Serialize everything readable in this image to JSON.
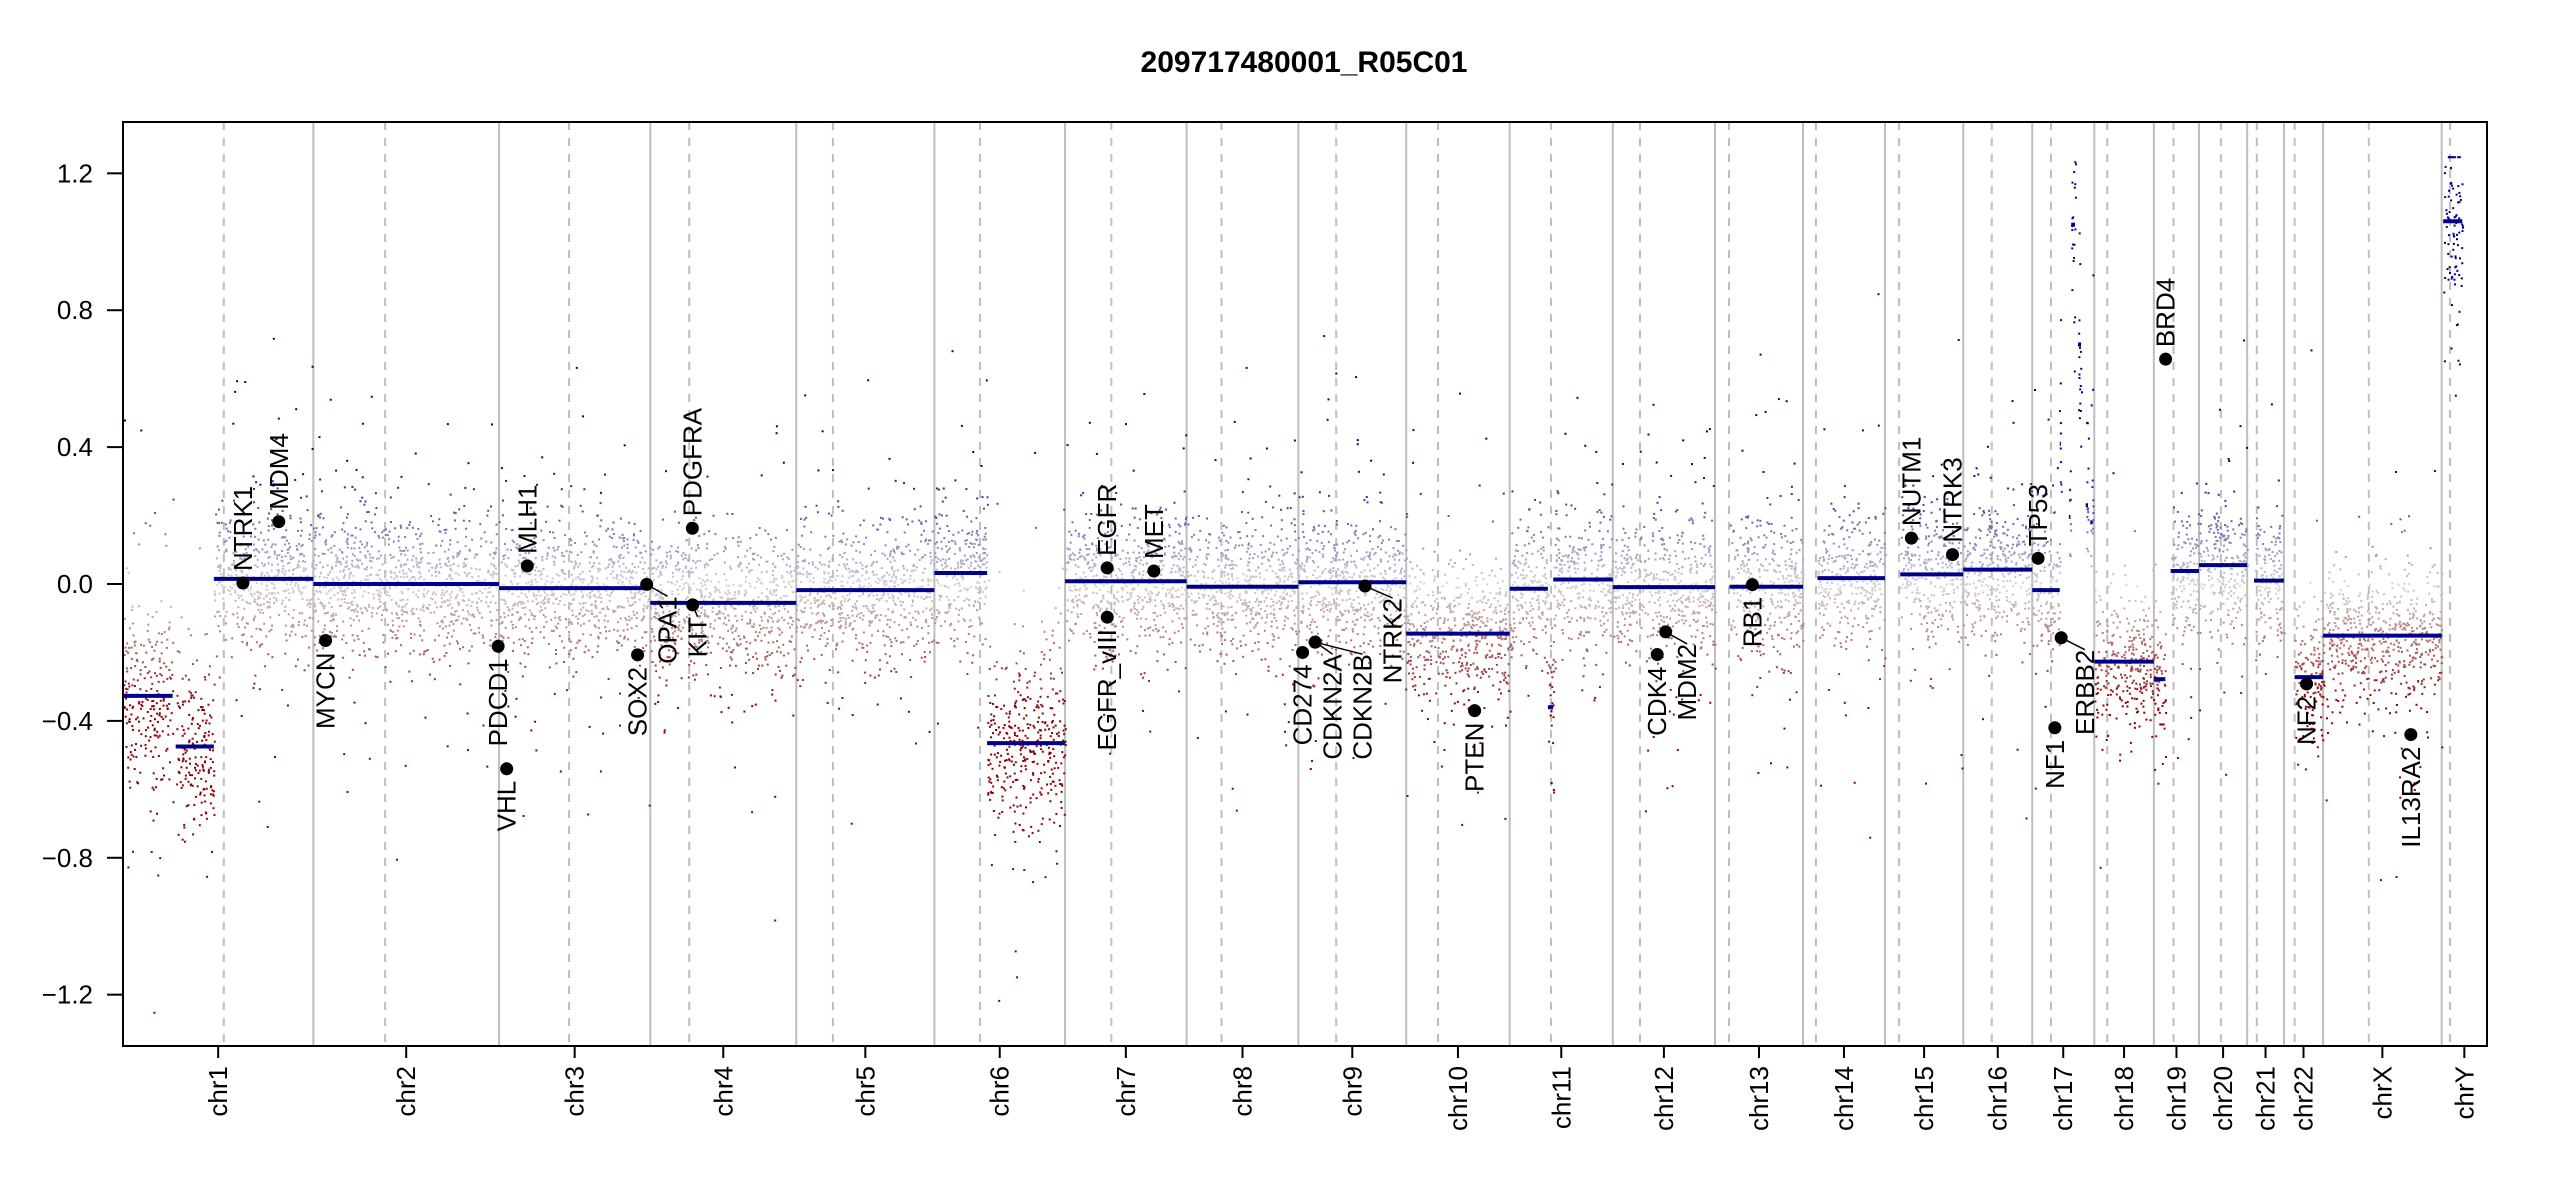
{
  "chart_data": {
    "type": "scatter",
    "title": "209717480001_R05C01",
    "xlabel": "",
    "ylabel": "",
    "ylim": [
      -1.35,
      1.35
    ],
    "grid": false,
    "legend": "none",
    "yticks": [
      -1.2,
      -0.8,
      -0.4,
      0.0,
      0.4,
      0.8,
      1.2
    ],
    "ytick_labels": [
      "−1.2",
      "−0.8",
      "−0.4",
      "0.0",
      "0.4",
      "0.8",
      "1.2"
    ],
    "colors": {
      "loss": "#8B0000",
      "neutral": "#D3D3D3",
      "gain": "#00008B",
      "segment": "#00008B",
      "chromosome_border": "#BEBEBE",
      "centromere": "#BEBEBE",
      "gene_marker": "#000000"
    },
    "chromosomes": [
      {
        "name": "chr1",
        "length": 249.25,
        "centromere": 132,
        "segments": [
          [
            0,
            65,
            -0.327
          ],
          [
            69,
            119,
            -0.475
          ],
          [
            119,
            249.25,
            0.015
          ]
        ]
      },
      {
        "name": "chr2",
        "length": 243.2,
        "centromere": 94,
        "segments": [
          [
            0,
            243.2,
            0.0
          ]
        ]
      },
      {
        "name": "chr3",
        "length": 198.02,
        "centromere": 91.7,
        "segments": [
          [
            0,
            198.02,
            -0.012
          ]
        ]
      },
      {
        "name": "chr4",
        "length": 191.15,
        "centromere": 51,
        "segments": [
          [
            0,
            191.15,
            -0.055
          ]
        ]
      },
      {
        "name": "chr5",
        "length": 180.92,
        "centromere": 48,
        "segments": [
          [
            0,
            180.92,
            -0.018
          ]
        ]
      },
      {
        "name": "chr6",
        "length": 171.12,
        "centromere": 59.7,
        "segments": [
          [
            0,
            69,
            0.032
          ],
          [
            69,
            171.12,
            -0.465
          ]
        ]
      },
      {
        "name": "chr7",
        "length": 159.14,
        "centromere": 60.6,
        "segments": [
          [
            0,
            159.14,
            0.008
          ]
        ]
      },
      {
        "name": "chr8",
        "length": 146.36,
        "centromere": 45.6,
        "segments": [
          [
            0,
            146.36,
            -0.008
          ]
        ]
      },
      {
        "name": "chr9",
        "length": 141.21,
        "centromere": 49.5,
        "segments": [
          [
            0,
            141.21,
            0.005
          ]
        ]
      },
      {
        "name": "chr10",
        "length": 135.53,
        "centromere": 41.6,
        "segments": [
          [
            0,
            135.53,
            -0.145
          ]
        ]
      },
      {
        "name": "chr11",
        "length": 135.01,
        "centromere": 54,
        "segments": [
          [
            0,
            50,
            -0.014
          ],
          [
            50,
            57,
            -0.36
          ],
          [
            57,
            135.01,
            0.013
          ]
        ]
      },
      {
        "name": "chr12",
        "length": 133.85,
        "centromere": 35.6,
        "segments": [
          [
            0,
            133.85,
            -0.009
          ]
        ]
      },
      {
        "name": "chr13",
        "length": 115.17,
        "centromere": 18.3,
        "segments": [
          [
            19,
            115.17,
            -0.008
          ]
        ]
      },
      {
        "name": "chr14",
        "length": 107.35,
        "centromere": 17,
        "segments": [
          [
            19,
            107.35,
            0.017
          ]
        ]
      },
      {
        "name": "chr15",
        "length": 102.53,
        "centromere": 18.5,
        "segments": [
          [
            20,
            102.53,
            0.028
          ]
        ]
      },
      {
        "name": "chr16",
        "length": 90.35,
        "centromere": 37.4,
        "segments": [
          [
            0,
            90.35,
            0.042
          ]
        ]
      },
      {
        "name": "chr17",
        "length": 81.2,
        "centromere": 24.6,
        "segments": [
          [
            0,
            36,
            -0.018
          ],
          [
            36,
            37.5,
            0.41
          ],
          [
            48,
            50,
            0.196
          ],
          [
            51,
            56,
            1.05
          ],
          [
            60,
            64,
            0.7
          ],
          [
            70,
            73,
            0.23
          ],
          [
            76,
            79,
            0.18
          ]
        ]
      },
      {
        "name": "chr18",
        "length": 78.08,
        "centromere": 17,
        "segments": [
          [
            0,
            78.08,
            -0.227
          ]
        ]
      },
      {
        "name": "chr19",
        "length": 59.13,
        "centromere": 25.7,
        "segments": [
          [
            0,
            15,
            -0.278
          ],
          [
            22,
            59.13,
            0.038
          ]
        ]
      },
      {
        "name": "chr20",
        "length": 63.03,
        "centromere": 28.6,
        "segments": [
          [
            0,
            63.03,
            0.055
          ]
        ]
      },
      {
        "name": "chr21",
        "length": 48.13,
        "centromere": 12.6,
        "segments": [
          [
            9,
            48.13,
            0.01
          ]
        ]
      },
      {
        "name": "chr22",
        "length": 51.3,
        "centromere": 14,
        "segments": [
          [
            14,
            51.3,
            -0.272
          ]
        ]
      },
      {
        "name": "chrX",
        "length": 155.27,
        "centromere": 59.8,
        "segments": [
          [
            0,
            155.27,
            -0.151
          ]
        ]
      },
      {
        "name": "chrY",
        "length": 59.37,
        "centromere": 11,
        "segments": [
          [
            2,
            27,
            1.06
          ]
        ]
      }
    ],
    "genes": [
      {
        "name": "NTRK1",
        "chr": "chr1",
        "pos": 157,
        "value": 0.003
      },
      {
        "name": "MDM4",
        "chr": "chr1",
        "pos": 204,
        "value": 0.182
      },
      {
        "name": "MYCN",
        "chr": "chr2",
        "pos": 16,
        "value": -0.165
      },
      {
        "name": "PDCD1",
        "chr": "chr2",
        "pos": 242,
        "value": -0.182
      },
      {
        "name": "VHL",
        "chr": "chr3",
        "pos": 10,
        "value": -0.54
      },
      {
        "name": "MLH1",
        "chr": "chr3",
        "pos": 37,
        "value": 0.053
      },
      {
        "name": "SOX2",
        "chr": "chr3",
        "pos": 181.4,
        "value": -0.207
      },
      {
        "name": "OPA1",
        "chr": "chr3",
        "pos": 193.3,
        "value": -0.001
      },
      {
        "name": "PDGFRA",
        "chr": "chr4",
        "pos": 55.1,
        "value": 0.163
      },
      {
        "name": "KIT",
        "chr": "chr4",
        "pos": 55.5,
        "value": -0.061
      },
      {
        "name": "EGFR",
        "chr": "chr7",
        "pos": 55.1,
        "value": 0.047
      },
      {
        "name": "EGFR_vIII",
        "chr": "chr7",
        "pos": 55.2,
        "value": -0.097
      },
      {
        "name": "MET",
        "chr": "chr7",
        "pos": 116.3,
        "value": 0.038
      },
      {
        "name": "CD274",
        "chr": "chr9",
        "pos": 5.5,
        "value": -0.2
      },
      {
        "name": "CDKN2A",
        "chr": "chr9",
        "pos": 21.97,
        "value": -0.17
      },
      {
        "name": "CDKN2B",
        "chr": "chr9",
        "pos": 22.0,
        "value": -0.17
      },
      {
        "name": "NTRK2",
        "chr": "chr9",
        "pos": 87.3,
        "value": -0.006
      },
      {
        "name": "PTEN",
        "chr": "chr10",
        "pos": 89.6,
        "value": -0.37
      },
      {
        "name": "CDK4",
        "chr": "chr12",
        "pos": 58.1,
        "value": -0.206
      },
      {
        "name": "MDM2",
        "chr": "chr12",
        "pos": 69.2,
        "value": -0.14
      },
      {
        "name": "RB1",
        "chr": "chr13",
        "pos": 48.9,
        "value": -0.002
      },
      {
        "name": "NUTM1",
        "chr": "chr15",
        "pos": 34.6,
        "value": 0.134
      },
      {
        "name": "NTRK3",
        "chr": "chr15",
        "pos": 88.5,
        "value": 0.086
      },
      {
        "name": "TP53",
        "chr": "chr17",
        "pos": 7.6,
        "value": 0.075
      },
      {
        "name": "NF1",
        "chr": "chr17",
        "pos": 29.6,
        "value": -0.42
      },
      {
        "name": "ERBB2",
        "chr": "chr17",
        "pos": 37.9,
        "value": -0.157
      },
      {
        "name": "BRD4",
        "chr": "chr19",
        "pos": 15.4,
        "value": 0.657
      },
      {
        "name": "NF2",
        "chr": "chr22",
        "pos": 29.7,
        "value": -0.292
      },
      {
        "name": "IL13RA2",
        "chr": "chrX",
        "pos": 114.9,
        "value": -0.44
      }
    ]
  }
}
